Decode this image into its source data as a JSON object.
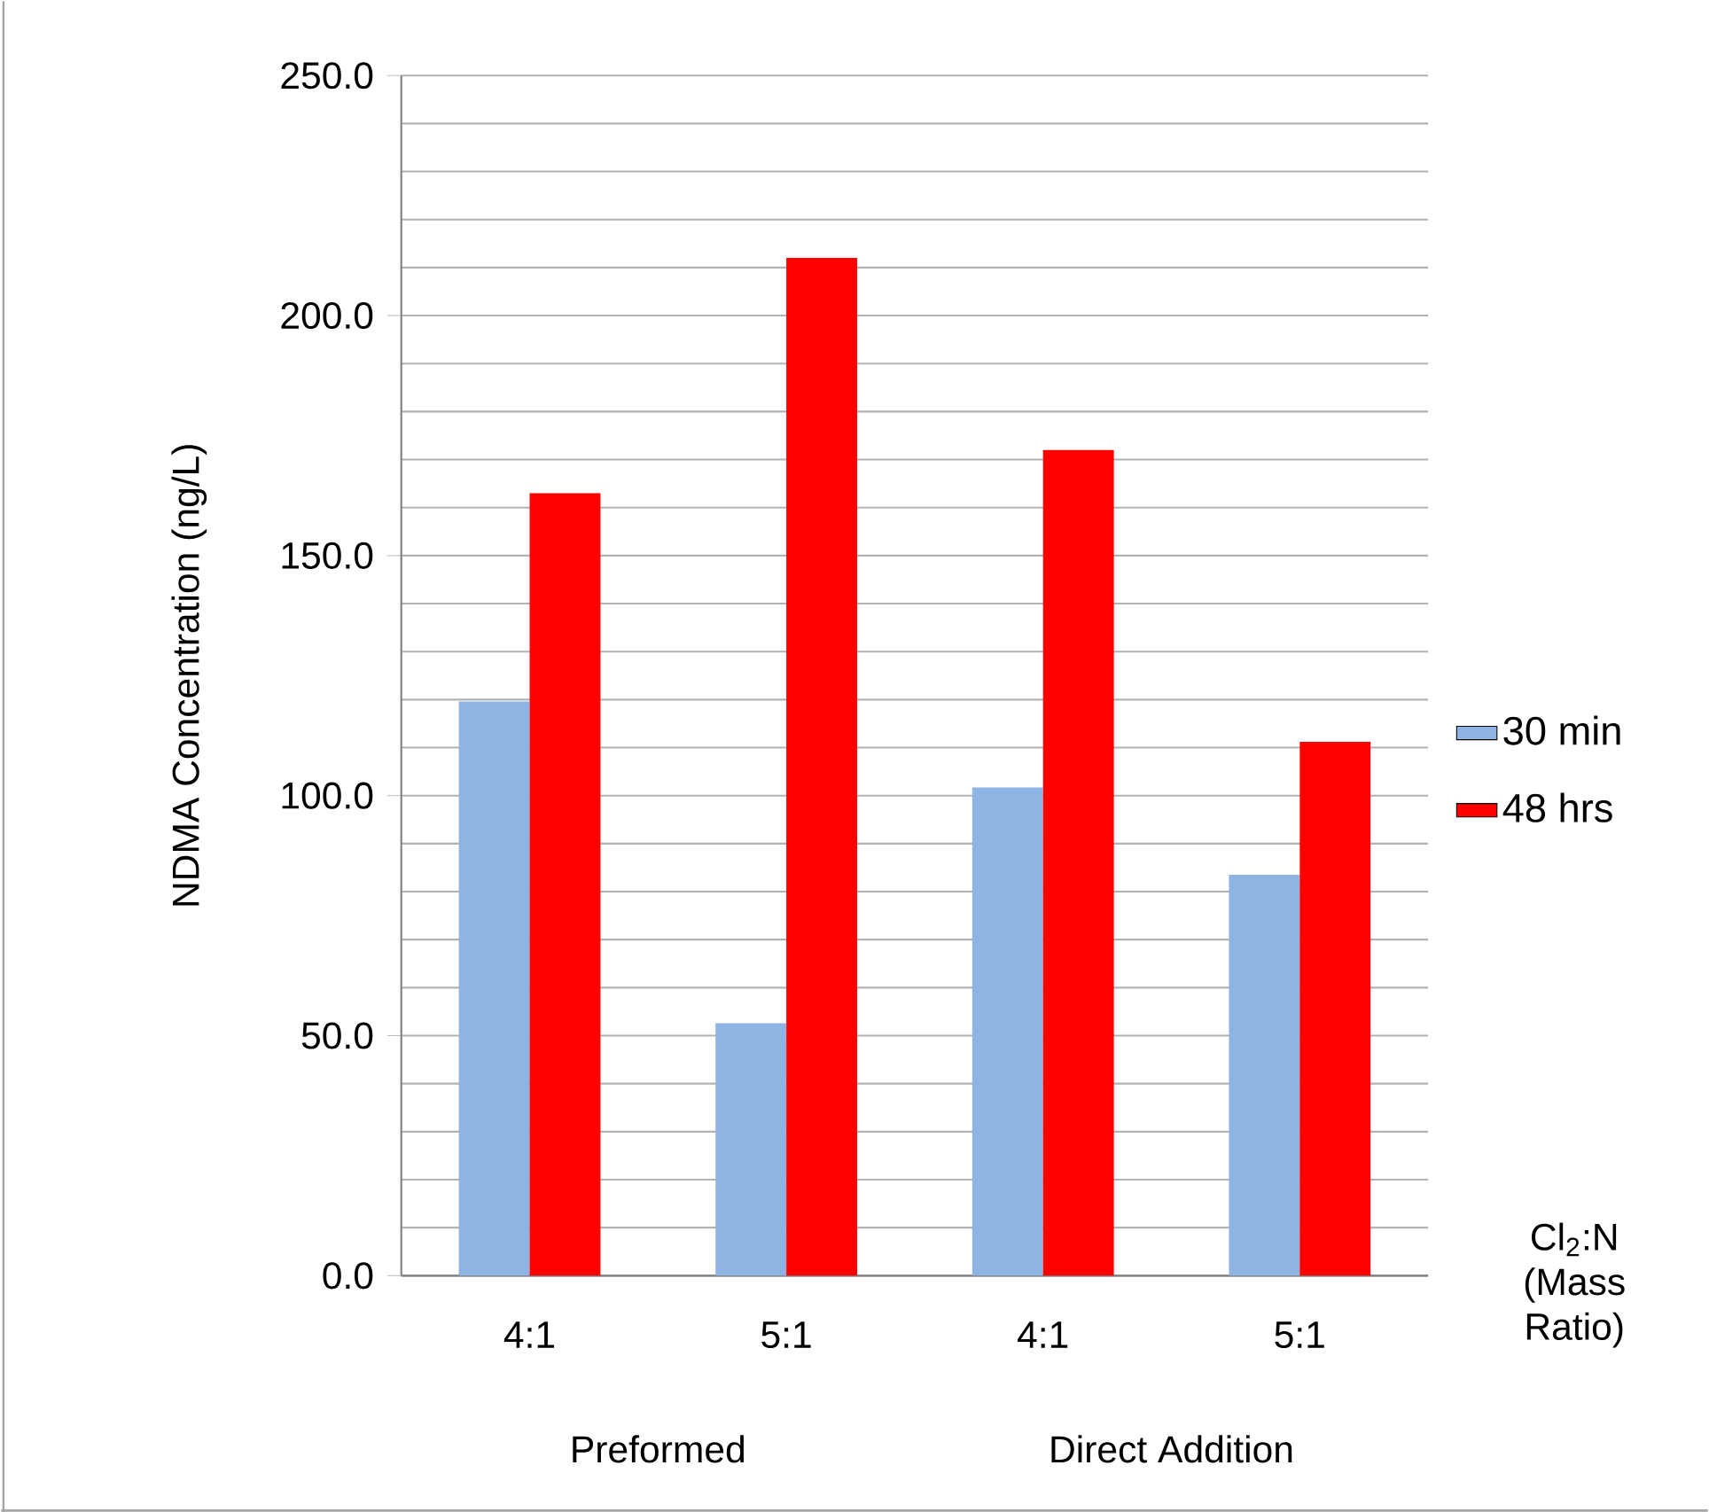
{
  "chart_data": {
    "type": "bar",
    "ylabel": "NDMA Concentration (ng/L)",
    "xlabel": "Cl$_{2}$:N (Mass Ratio)",
    "categories": [
      "4:1",
      "5:1",
      "4:1",
      "5:1"
    ],
    "series": [
      {
        "name": "30 min",
        "color": "#8eb4e3",
        "values": [
          119.6,
          52.6,
          101.7,
          83.5
        ]
      },
      {
        "name": "48 hrs",
        "color": "#ff0000",
        "values": [
          163,
          212,
          172,
          111.2
        ]
      }
    ],
    "annotations": [
      "Preformed",
      "Direct Addition"
    ],
    "ylim": [
      0,
      250
    ],
    "yticks": [
      {
        "value": 0,
        "label": "0.0"
      },
      {
        "value": 50,
        "label": "50.0"
      },
      {
        "value": 100,
        "label": "100.0"
      },
      {
        "value": 150,
        "label": "150.0"
      },
      {
        "value": 200,
        "label": "200.0"
      },
      {
        "value": 250,
        "label": "250.0"
      }
    ],
    "grid": "y",
    "legend": "right"
  }
}
